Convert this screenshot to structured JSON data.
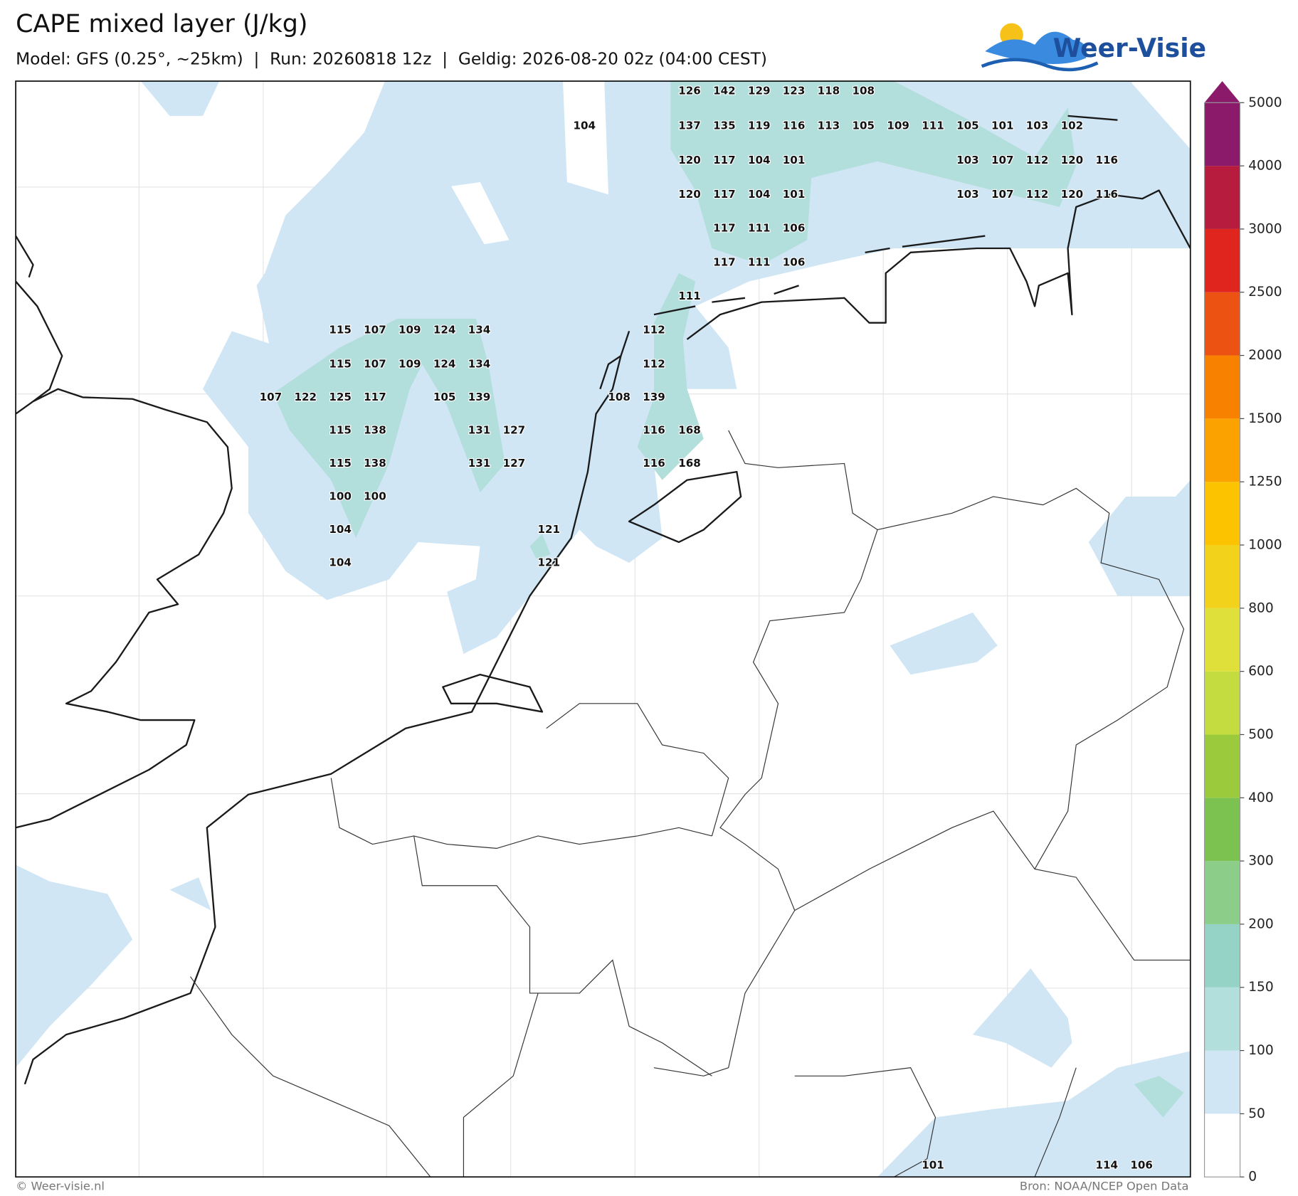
{
  "header": {
    "title": "CAPE mixed layer (J/kg)",
    "subtitle": "Model: GFS (0.25°, ~25km)  |  Run: 20260818 12z  |  Geldig: 2026-08-20 02z (04:00 CEST)"
  },
  "logo": "Weer-Visie",
  "labels": [
    [
      126,
      142,
      129,
      123,
      118,
      108
    ],
    [
      104,
      137,
      135,
      119,
      116,
      113,
      105,
      109,
      111,
      105,
      101,
      103,
      102
    ],
    [
      120,
      117,
      104,
      101,
      103,
      107,
      112,
      120,
      116
    ],
    [
      120,
      117,
      104,
      101,
      103,
      107,
      112,
      120,
      116
    ],
    [
      117,
      111,
      106
    ],
    [
      117,
      111,
      106
    ],
    [
      111
    ],
    [
      115,
      107,
      109,
      124,
      134,
      112
    ],
    [
      115,
      107,
      109,
      124,
      134,
      112
    ],
    [
      107,
      122,
      125,
      117,
      105,
      139,
      108,
      139
    ],
    [
      115,
      138,
      131,
      127,
      116,
      168
    ],
    [
      115,
      138,
      131,
      127,
      116,
      168
    ],
    [
      100,
      100
    ],
    [
      104,
      121
    ],
    [
      104,
      121
    ],
    [
      101,
      114,
      106
    ]
  ],
  "colorbar": {
    "levels": [
      0,
      50,
      100,
      150,
      200,
      300,
      400,
      500,
      600,
      800,
      1000,
      1250,
      1500,
      2000,
      2500,
      3000,
      4000,
      5000
    ],
    "colors": [
      "#ffffff",
      "#d0e6f5",
      "#b2dedc",
      "#94d3c6",
      "#8ccd8a",
      "#7bc250",
      "#9bcb3c",
      "#c4dc40",
      "#dfe03a",
      "#f2d21a",
      "#fbc300",
      "#fba200",
      "#f88100",
      "#ec5212",
      "#df251d",
      "#b71c3f",
      "#8b1a6b"
    ]
  },
  "footer": {
    "left": "© Weer-visie.nl",
    "right": "Bron: NOAA/NCEP Open Data"
  }
}
